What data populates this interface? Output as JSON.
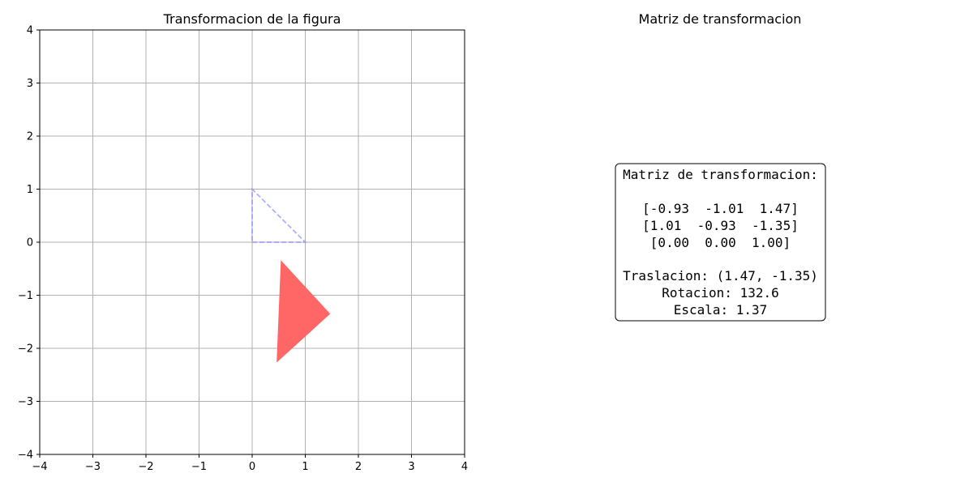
{
  "chart_data": [
    {
      "type": "line",
      "title": "Transformacion de la figura",
      "xlabel": "",
      "ylabel": "",
      "xlim": [
        -4,
        4
      ],
      "ylim": [
        -4,
        4
      ],
      "xticks": [
        -4,
        -3,
        -2,
        -1,
        0,
        1,
        2,
        3,
        4
      ],
      "yticks": [
        -4,
        -3,
        -2,
        -1,
        0,
        1,
        2,
        3,
        4
      ],
      "xtick_labels": [
        "−4",
        "−3",
        "−2",
        "−1",
        "0",
        "1",
        "2",
        "3",
        "4"
      ],
      "ytick_labels": [
        "−4",
        "−3",
        "−2",
        "−1",
        "0",
        "1",
        "2",
        "3",
        "4"
      ],
      "grid": true,
      "series": [
        {
          "style": "dashed outline",
          "color": "#8c8cff",
          "x": [
            0,
            1,
            0
          ],
          "y": [
            0,
            0,
            1
          ]
        },
        {
          "style": "filled polygon",
          "color": "#ff6666",
          "x": [
            0.54,
            1.47,
            0.46
          ],
          "y": [
            -0.34,
            -1.35,
            -2.27
          ]
        }
      ]
    }
  ],
  "matrix_panel": {
    "title": "Matriz de transformacion",
    "lines": [
      "Matriz de transformacion:",
      "",
      "[-0.93  -1.01  1.47]",
      "[1.01  -0.93  -1.35]",
      "[0.00  0.00  1.00]",
      "",
      "Traslacion: (1.47, -1.35)",
      "Rotacion: 132.6",
      "Escala: 1.37"
    ]
  },
  "colors": {
    "grid": "#b0b0b0",
    "axes": "#000000",
    "original_shape": "#8c8cff",
    "transformed_shape": "#ff6666"
  }
}
